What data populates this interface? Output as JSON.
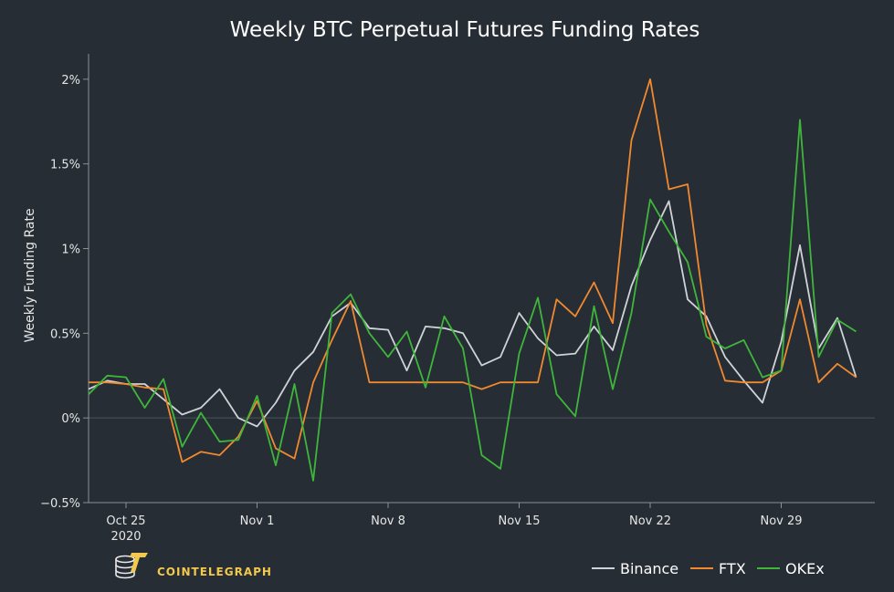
{
  "chart_data": {
    "type": "line",
    "title": "Weekly BTC Perpetual Futures Funding Rates",
    "ylabel": "Weekly Funding Rate",
    "xlabel": "",
    "x_start": "2020-10-23",
    "x_step_days": 1,
    "x_ticks": [
      {
        "date": "2020-10-25",
        "label": "Oct 25",
        "sublabel": "2020"
      },
      {
        "date": "2020-11-01",
        "label": "Nov 1",
        "sublabel": ""
      },
      {
        "date": "2020-11-08",
        "label": "Nov 8",
        "sublabel": ""
      },
      {
        "date": "2020-11-15",
        "label": "Nov 15",
        "sublabel": ""
      },
      {
        "date": "2020-11-22",
        "label": "Nov 22",
        "sublabel": ""
      },
      {
        "date": "2020-11-29",
        "label": "Nov 29",
        "sublabel": ""
      }
    ],
    "xlim": [
      "2020-10-23",
      "2020-12-04"
    ],
    "ylim": [
      -0.5,
      2.15
    ],
    "y_ticks": [
      {
        "value": -0.5,
        "label": "−0.5%"
      },
      {
        "value": 0,
        "label": "0%"
      },
      {
        "value": 0.5,
        "label": "0.5%"
      },
      {
        "value": 1,
        "label": "1%"
      },
      {
        "value": 1.5,
        "label": "1.5%"
      },
      {
        "value": 2,
        "label": "2%"
      }
    ],
    "zero_line": true,
    "grid": false,
    "legend_position": "bottom-right",
    "series": [
      {
        "name": "Binance",
        "color": "#cfd3d7",
        "values": [
          0.17,
          0.22,
          0.2,
          0.2,
          0.11,
          0.02,
          0.06,
          0.17,
          0.0,
          -0.05,
          0.09,
          0.28,
          0.39,
          0.6,
          0.68,
          0.53,
          0.52,
          0.28,
          0.54,
          0.53,
          0.5,
          0.31,
          0.36,
          0.62,
          0.47,
          0.37,
          0.38,
          0.54,
          0.4,
          0.78,
          1.05,
          1.28,
          0.7,
          0.6,
          0.36,
          0.22,
          0.09,
          0.45,
          1.02,
          0.41,
          0.59,
          0.24
        ]
      },
      {
        "name": "FTX",
        "color": "#f0892f",
        "values": [
          0.21,
          0.21,
          0.2,
          0.18,
          0.17,
          -0.26,
          -0.2,
          -0.22,
          -0.11,
          0.1,
          -0.18,
          -0.24,
          0.21,
          0.46,
          0.69,
          0.21,
          0.21,
          0.21,
          0.21,
          0.21,
          0.21,
          0.17,
          0.21,
          0.21,
          0.21,
          0.7,
          0.6,
          0.8,
          0.56,
          1.64,
          2.0,
          1.35,
          1.38,
          0.55,
          0.22,
          0.21,
          0.21,
          0.28,
          0.7,
          0.21,
          0.32,
          0.24
        ]
      },
      {
        "name": "OKEx",
        "color": "#3fb63b",
        "values": [
          0.14,
          0.25,
          0.24,
          0.06,
          0.23,
          -0.17,
          0.03,
          -0.14,
          -0.13,
          0.13,
          -0.28,
          0.2,
          -0.37,
          0.62,
          0.73,
          0.5,
          0.36,
          0.51,
          0.18,
          0.6,
          0.41,
          -0.22,
          -0.3,
          0.38,
          0.71,
          0.14,
          0.01,
          0.66,
          0.17,
          0.62,
          1.29,
          1.1,
          0.92,
          0.48,
          0.41,
          0.46,
          0.24,
          0.28,
          1.76,
          0.36,
          0.58,
          0.51
        ]
      }
    ]
  },
  "brand": {
    "logo_text": "COINTELEGRAPH"
  }
}
